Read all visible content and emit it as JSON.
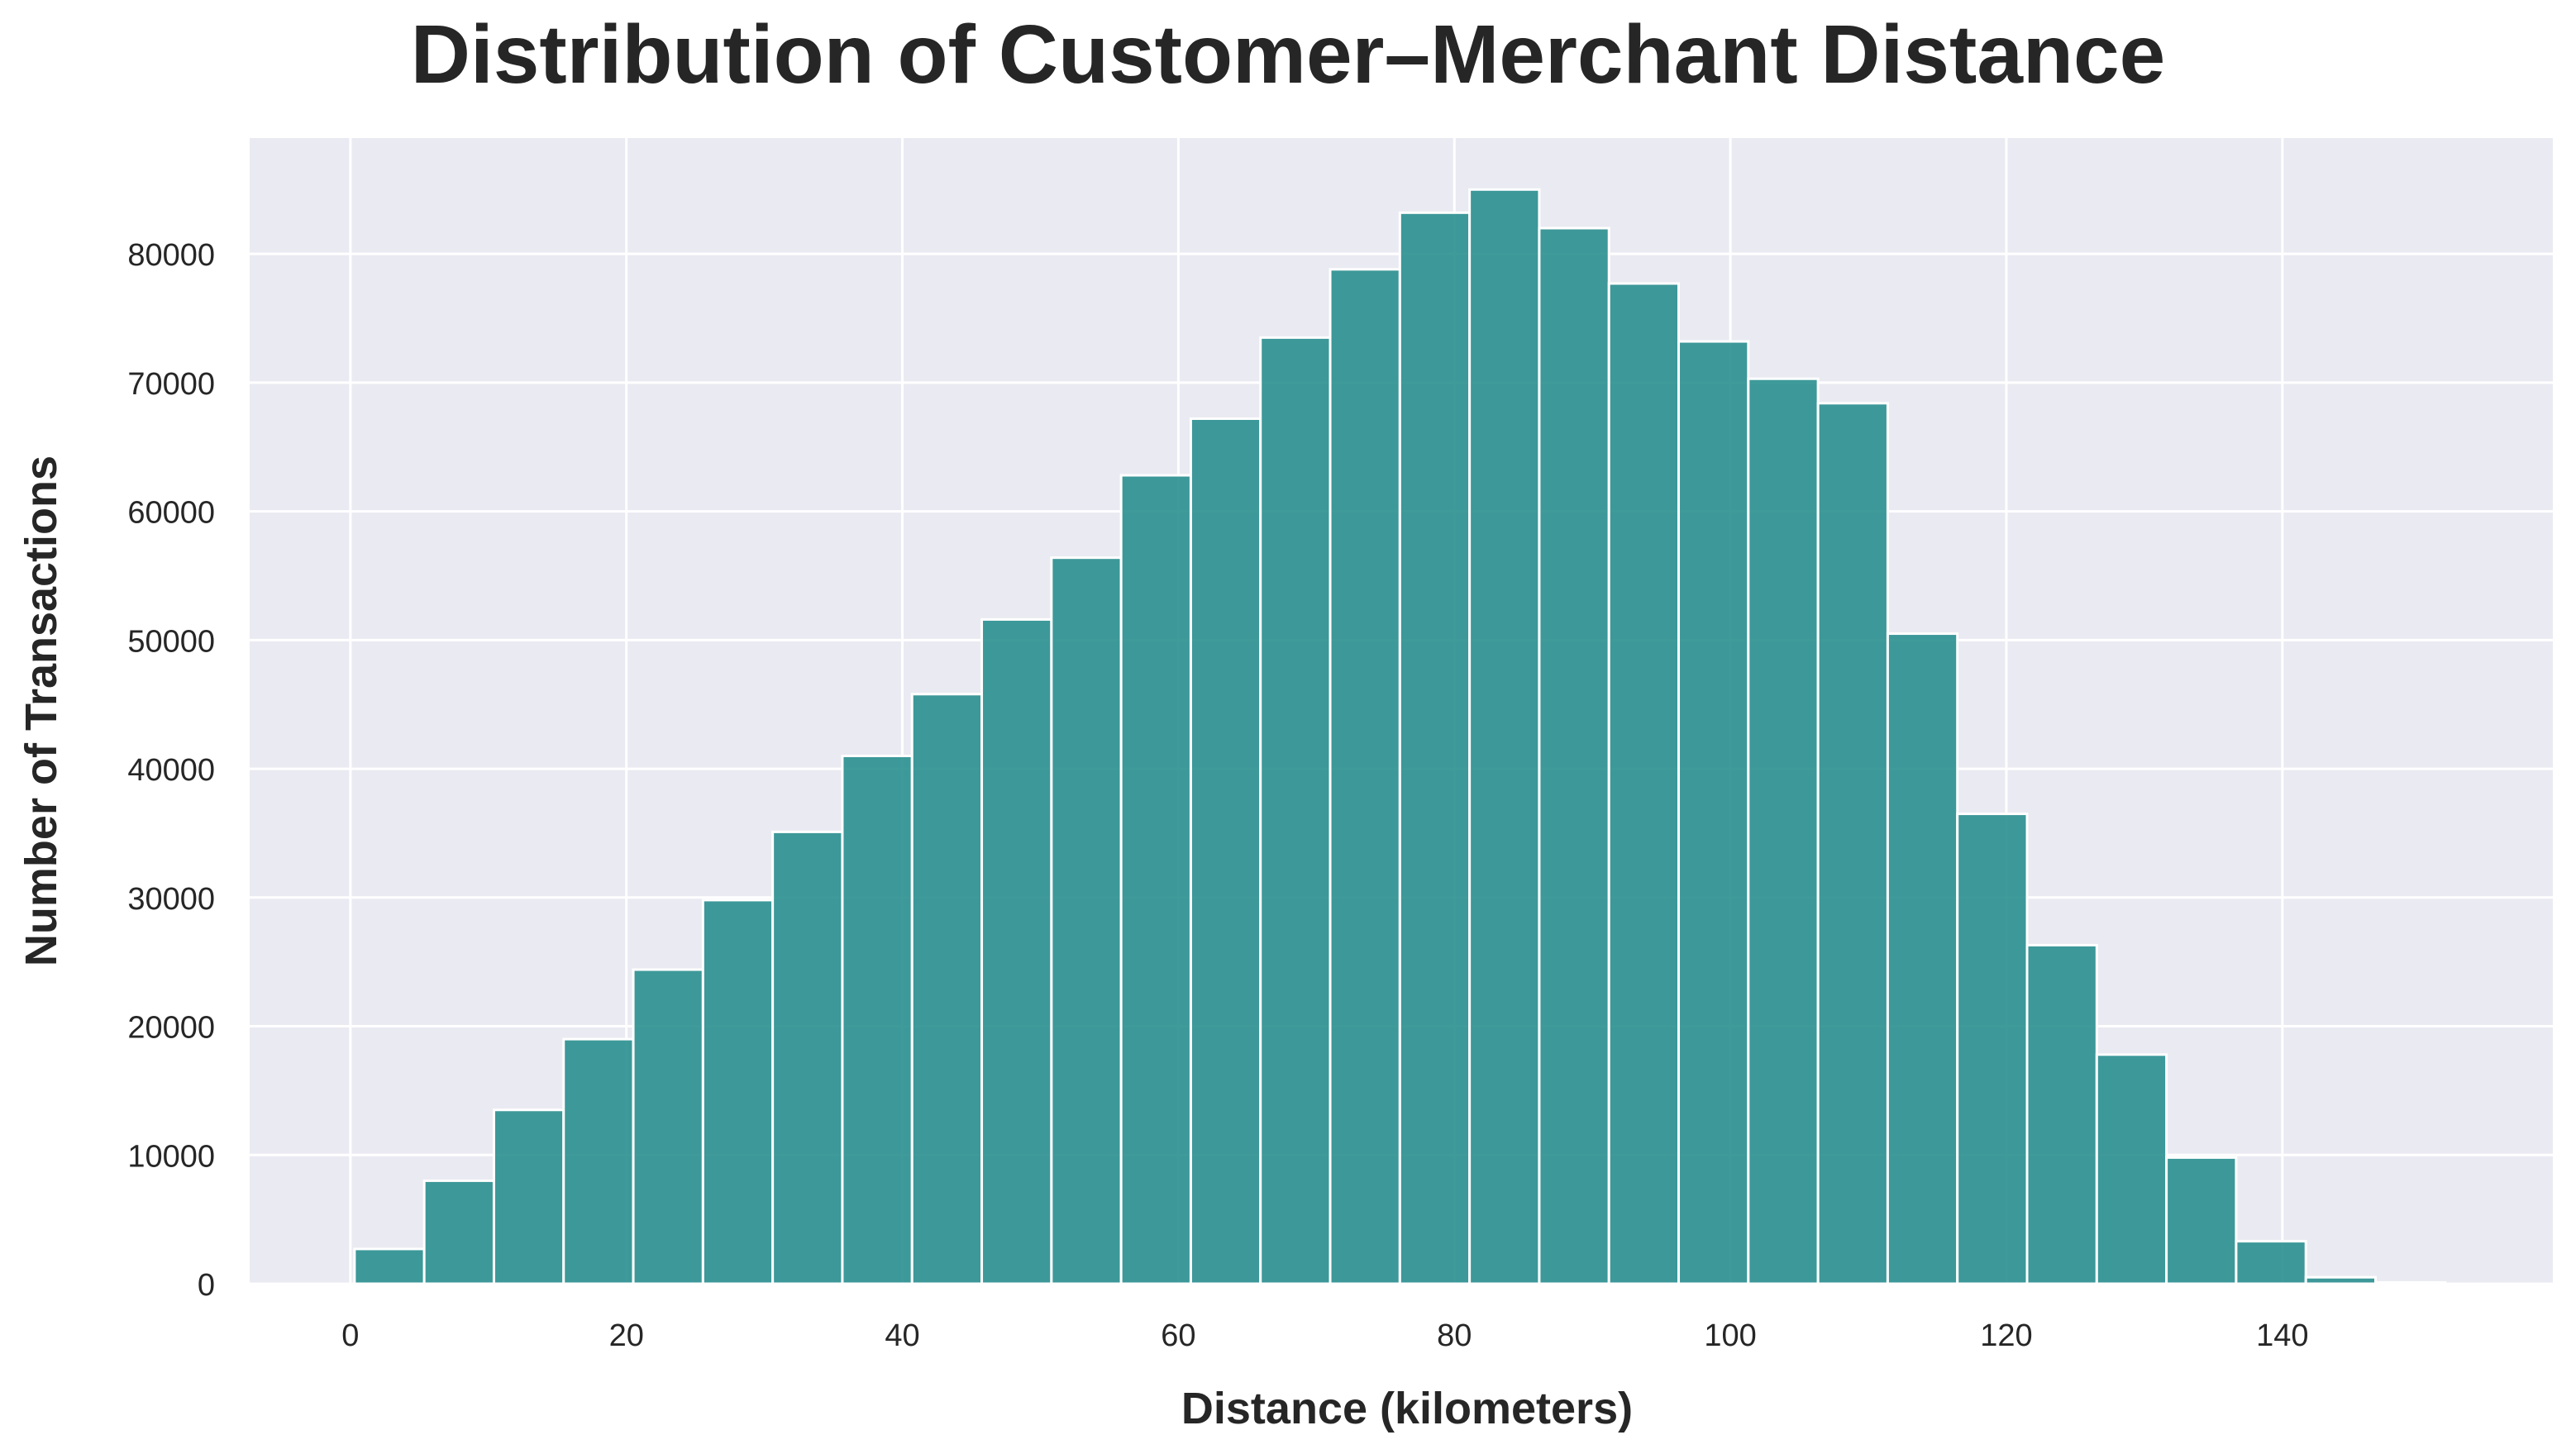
{
  "chart_data": {
    "type": "bar",
    "title": "Distribution of Customer–Merchant Distance",
    "xlabel": "Distance (kilometers)",
    "ylabel": "Number of Transactions",
    "bin_edges": [
      0.3,
      5.35,
      10.4,
      15.45,
      20.5,
      25.55,
      30.6,
      35.65,
      40.7,
      45.75,
      50.8,
      55.85,
      60.9,
      65.95,
      71.0,
      76.05,
      81.1,
      86.15,
      91.2,
      96.25,
      101.3,
      106.35,
      111.4,
      116.45,
      121.5,
      126.55,
      131.6,
      136.65,
      141.7,
      146.75,
      151.8
    ],
    "values": [
      2700,
      8000,
      13500,
      19000,
      24400,
      29800,
      35100,
      41000,
      45800,
      51600,
      56400,
      62800,
      67200,
      73500,
      78800,
      83200,
      85000,
      82000,
      77700,
      73200,
      70300,
      68400,
      50500,
      36500,
      26300,
      17800,
      9800,
      3300,
      500,
      100
    ],
    "xlim": [
      -7.3,
      159.6
    ],
    "ylim": [
      0,
      89000
    ],
    "xticks": [
      0,
      20,
      40,
      60,
      80,
      100,
      120,
      140
    ],
    "yticks": [
      0,
      10000,
      20000,
      30000,
      40000,
      50000,
      60000,
      70000,
      80000
    ],
    "grid": true,
    "colors": {
      "bar": "#2a8f8f",
      "bar_edge": "#ffffff",
      "plot_background": "#eaeaf2",
      "grid": "#ffffff",
      "text": "#262626"
    }
  }
}
